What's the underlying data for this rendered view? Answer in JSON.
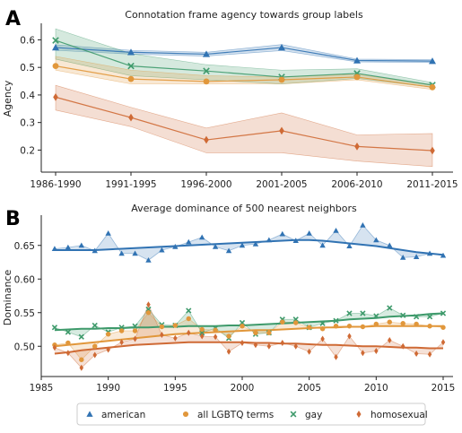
{
  "chart_data": [
    {
      "panel": "A",
      "type": "line",
      "title": "Connotation frame agency towards group labels",
      "xlabel": "",
      "ylabel": "Agency",
      "categories": [
        "1986-1990",
        "1991-1995",
        "1996-2000",
        "2001-2005",
        "2006-2010",
        "2011-2015"
      ],
      "ylim": [
        0.12,
        0.66
      ],
      "yticks": [
        0.2,
        0.3,
        0.4,
        0.5,
        0.6
      ],
      "ytick_labels": [
        "0.2",
        "0.3",
        "0.4",
        "0.5",
        "0.6"
      ],
      "series": [
        {
          "key": "american",
          "color": "#3173b3",
          "marker": "triangle",
          "values": [
            0.572,
            0.555,
            0.548,
            0.572,
            0.525,
            0.523
          ],
          "band_lower": [
            0.562,
            0.548,
            0.541,
            0.561,
            0.52,
            0.518
          ],
          "band_upper": [
            0.582,
            0.562,
            0.555,
            0.583,
            0.53,
            0.528
          ]
        },
        {
          "key": "gay",
          "color": "#3e9a6b",
          "marker": "x",
          "values": [
            0.598,
            0.505,
            0.487,
            0.465,
            0.478,
            0.436
          ],
          "band_lower": [
            0.53,
            0.47,
            0.455,
            0.44,
            0.46,
            0.428
          ],
          "band_upper": [
            0.64,
            0.55,
            0.51,
            0.49,
            0.495,
            0.445
          ]
        },
        {
          "key": "lgbtq",
          "color": "#e1973b",
          "marker": "circle",
          "values": [
            0.505,
            0.458,
            0.449,
            0.455,
            0.465,
            0.428
          ],
          "band_lower": [
            0.49,
            0.44,
            0.44,
            0.44,
            0.455,
            0.42
          ],
          "band_upper": [
            0.54,
            0.49,
            0.47,
            0.465,
            0.475,
            0.435
          ]
        },
        {
          "key": "homosexual",
          "color": "#cf6a35",
          "marker": "diamond",
          "values": [
            0.392,
            0.318,
            0.237,
            0.27,
            0.213,
            0.198
          ],
          "band_lower": [
            0.345,
            0.285,
            0.19,
            0.19,
            0.16,
            0.14
          ],
          "band_upper": [
            0.435,
            0.355,
            0.28,
            0.335,
            0.255,
            0.26
          ]
        }
      ]
    },
    {
      "panel": "B",
      "type": "scatter",
      "title": "Average dominance of 500 nearest neighbors",
      "xlabel": "",
      "ylabel": "Dominance",
      "xlim": [
        1985,
        2016
      ],
      "xticks": [
        1985,
        1990,
        1995,
        2000,
        2005,
        2010,
        2015
      ],
      "xtick_labels": [
        "1985",
        "1990",
        "1995",
        "2000",
        "2005",
        "2010",
        "2015"
      ],
      "ylim": [
        0.455,
        0.695
      ],
      "yticks": [
        0.5,
        0.55,
        0.6,
        0.65
      ],
      "ytick_labels": [
        "0.50",
        "0.55",
        "0.60",
        "0.65"
      ],
      "x": [
        1986,
        1987,
        1988,
        1989,
        1990,
        1991,
        1992,
        1993,
        1994,
        1995,
        1996,
        1997,
        1998,
        1999,
        2000,
        2001,
        2002,
        2003,
        2004,
        2005,
        2006,
        2007,
        2008,
        2009,
        2010,
        2011,
        2012,
        2013,
        2014,
        2015
      ],
      "series": [
        {
          "key": "american",
          "color": "#3173b3",
          "marker": "triangle",
          "values": [
            0.645,
            0.647,
            0.65,
            0.642,
            0.668,
            0.638,
            0.638,
            0.628,
            0.643,
            0.648,
            0.655,
            0.662,
            0.648,
            0.642,
            0.65,
            0.652,
            0.658,
            0.667,
            0.657,
            0.668,
            0.65,
            0.672,
            0.649,
            0.68,
            0.658,
            0.65,
            0.632,
            0.633,
            0.638,
            0.635
          ],
          "trend": [
            0.643,
            0.643,
            0.643,
            0.643,
            0.644,
            0.645,
            0.646,
            0.647,
            0.648,
            0.649,
            0.65,
            0.651,
            0.652,
            0.653,
            0.654,
            0.655,
            0.656,
            0.657,
            0.658,
            0.658,
            0.657,
            0.655,
            0.653,
            0.651,
            0.649,
            0.646,
            0.643,
            0.64,
            0.638,
            0.636
          ]
        },
        {
          "key": "gay",
          "color": "#3e9a6b",
          "marker": "x",
          "values": [
            0.528,
            0.521,
            0.514,
            0.531,
            0.521,
            0.528,
            0.53,
            0.555,
            0.532,
            0.531,
            0.553,
            0.52,
            0.527,
            0.512,
            0.535,
            0.518,
            0.52,
            0.54,
            0.54,
            0.528,
            0.534,
            0.538,
            0.549,
            0.549,
            0.545,
            0.557,
            0.546,
            0.544,
            0.544,
            0.549
          ],
          "trend": [
            0.524,
            0.525,
            0.526,
            0.526,
            0.527,
            0.527,
            0.528,
            0.528,
            0.529,
            0.529,
            0.53,
            0.53,
            0.53,
            0.531,
            0.531,
            0.532,
            0.533,
            0.534,
            0.535,
            0.536,
            0.537,
            0.538,
            0.54,
            0.541,
            0.542,
            0.544,
            0.545,
            0.546,
            0.548,
            0.549
          ]
        },
        {
          "key": "lgbtq",
          "color": "#e1973b",
          "marker": "circle",
          "values": [
            0.502,
            0.505,
            0.48,
            0.5,
            0.518,
            0.523,
            0.523,
            0.55,
            0.529,
            0.531,
            0.541,
            0.525,
            0.524,
            0.515,
            0.53,
            0.52,
            0.52,
            0.536,
            0.535,
            0.528,
            0.526,
            0.53,
            0.53,
            0.529,
            0.533,
            0.536,
            0.534,
            0.533,
            0.53,
            0.528
          ],
          "trend": [
            0.5,
            0.502,
            0.504,
            0.506,
            0.508,
            0.51,
            0.512,
            0.514,
            0.516,
            0.518,
            0.519,
            0.52,
            0.521,
            0.522,
            0.523,
            0.524,
            0.524,
            0.525,
            0.526,
            0.527,
            0.528,
            0.528,
            0.529,
            0.529,
            0.53,
            0.53,
            0.53,
            0.53,
            0.53,
            0.53
          ]
        },
        {
          "key": "homosexual",
          "color": "#cf6a35",
          "marker": "diamond",
          "values": [
            0.498,
            0.49,
            0.468,
            0.487,
            0.495,
            0.506,
            0.511,
            0.562,
            0.517,
            0.512,
            0.52,
            0.515,
            0.514,
            0.492,
            0.505,
            0.502,
            0.5,
            0.505,
            0.5,
            0.492,
            0.511,
            0.484,
            0.515,
            0.49,
            0.493,
            0.509,
            0.5,
            0.489,
            0.488,
            0.506
          ],
          "trend": [
            0.489,
            0.491,
            0.494,
            0.496,
            0.498,
            0.5,
            0.502,
            0.503,
            0.504,
            0.505,
            0.506,
            0.506,
            0.506,
            0.506,
            0.506,
            0.505,
            0.505,
            0.504,
            0.504,
            0.503,
            0.502,
            0.502,
            0.501,
            0.5,
            0.5,
            0.499,
            0.498,
            0.498,
            0.497,
            0.497
          ]
        }
      ]
    }
  ],
  "legend": {
    "items": [
      {
        "key": "american",
        "label": "american",
        "color": "#3173b3",
        "marker": "triangle"
      },
      {
        "key": "lgbtq",
        "label": "all LGBTQ terms",
        "color": "#e1973b",
        "marker": "circle"
      },
      {
        "key": "gay",
        "label": "gay",
        "color": "#3e9a6b",
        "marker": "x"
      },
      {
        "key": "homosexual",
        "label": "homosexual",
        "color": "#cf6a35",
        "marker": "diamond"
      }
    ]
  },
  "labels": {
    "panel_a": "A",
    "panel_b": "B"
  }
}
